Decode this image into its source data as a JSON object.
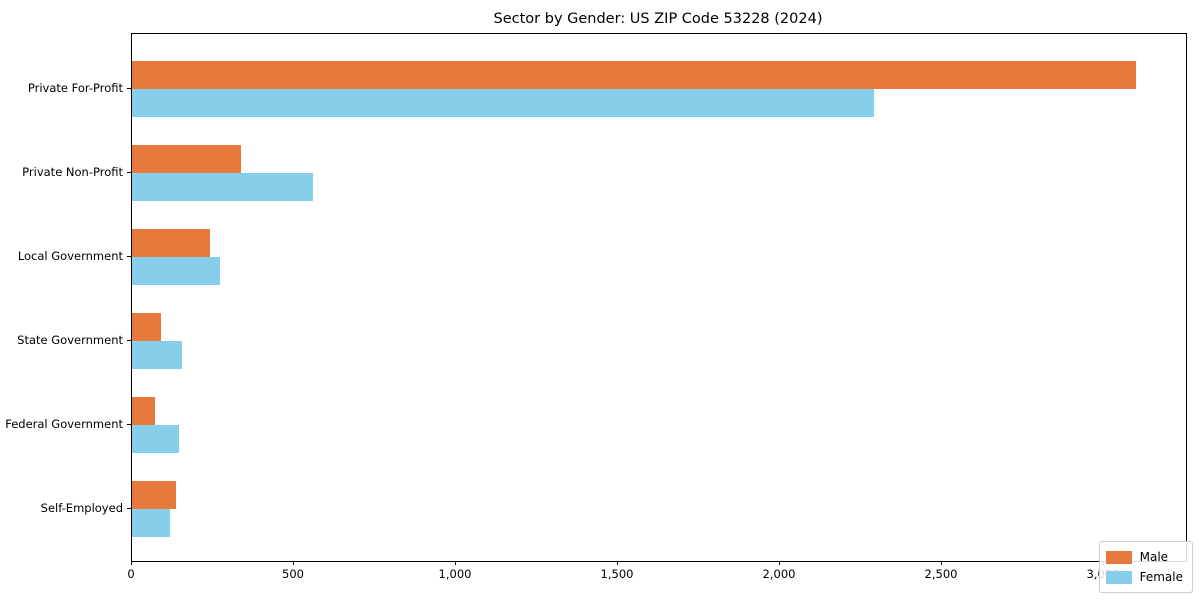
{
  "title": "Sector by Gender: US ZIP Code 53228 (2024)",
  "chart_data": {
    "type": "bar",
    "orientation": "horizontal",
    "title": "Sector by Gender: US ZIP Code 53228 (2024)",
    "xlabel": "",
    "ylabel": "",
    "categories": [
      "Private For-Profit",
      "Private Non-Profit",
      "Local Government",
      "State Government",
      "Federal Government",
      "Self-Employed"
    ],
    "series": [
      {
        "name": "Male",
        "color": "#E8793C",
        "values": [
          3100,
          335,
          240,
          88,
          70,
          135
        ]
      },
      {
        "name": "Female",
        "color": "#87CEEB",
        "values": [
          2290,
          560,
          270,
          155,
          145,
          117
        ]
      }
    ],
    "xlim": [
      0,
      3253
    ],
    "x_ticks": [
      0,
      500,
      1000,
      1500,
      2000,
      2500,
      3000
    ],
    "x_tick_labels": [
      "0",
      "500",
      "1,000",
      "1,500",
      "2,000",
      "2,500",
      "3,000"
    ],
    "grid": false,
    "legend": {
      "position": "lower right",
      "entries": [
        {
          "label": "Male",
          "color": "#E8793C"
        },
        {
          "label": "Female",
          "color": "#87CEEB"
        }
      ]
    }
  }
}
